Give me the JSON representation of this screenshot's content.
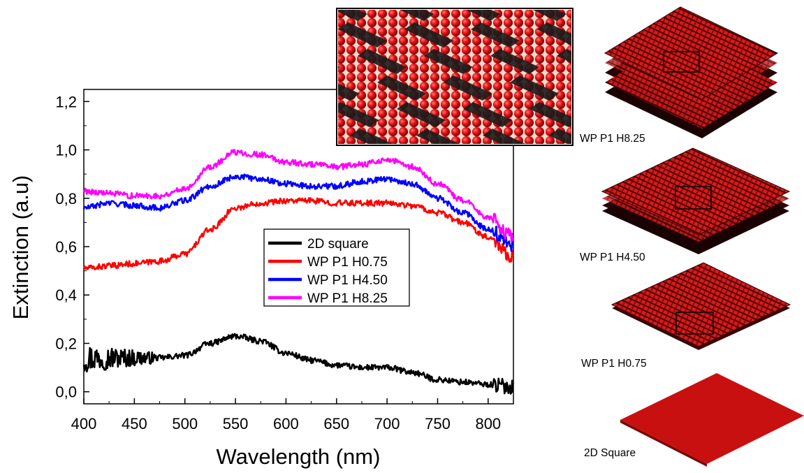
{
  "chart_data": {
    "type": "line",
    "xlabel": "Wavelength (nm)",
    "ylabel": "Extinction (a.u)",
    "xlim": [
      400,
      825
    ],
    "ylim": [
      -0.05,
      1.25
    ],
    "x_ticks": [
      400,
      450,
      500,
      550,
      600,
      650,
      700,
      750,
      800
    ],
    "x_tick_labels": [
      "400",
      "450",
      "500",
      "550",
      "600",
      "650",
      "700",
      "750",
      "800"
    ],
    "y_ticks": [
      0.0,
      0.2,
      0.4,
      0.6,
      0.8,
      1.0,
      1.2
    ],
    "y_tick_labels": [
      "0,0",
      "0,2",
      "0,4",
      "0,6",
      "0,8",
      "1,0",
      "1,2"
    ],
    "grid": false,
    "legend_position": "center",
    "x": [
      400,
      425,
      450,
      475,
      500,
      525,
      550,
      575,
      600,
      625,
      650,
      675,
      700,
      725,
      750,
      775,
      800,
      825
    ],
    "series": [
      {
        "name": "2D square",
        "color": "#000000",
        "values": [
          0.14,
          0.14,
          0.14,
          0.14,
          0.15,
          0.2,
          0.23,
          0.21,
          0.16,
          0.13,
          0.11,
          0.1,
          0.1,
          0.08,
          0.05,
          0.04,
          0.03,
          0.02
        ]
      },
      {
        "name": "WP P1 H0.75",
        "color": "#ff0000",
        "values": [
          0.51,
          0.52,
          0.53,
          0.54,
          0.57,
          0.67,
          0.76,
          0.78,
          0.79,
          0.79,
          0.78,
          0.78,
          0.78,
          0.77,
          0.74,
          0.7,
          0.64,
          0.56
        ]
      },
      {
        "name": "WP P1 H4.50",
        "color": "#0000ff",
        "values": [
          0.76,
          0.78,
          0.77,
          0.76,
          0.79,
          0.85,
          0.89,
          0.88,
          0.86,
          0.85,
          0.85,
          0.87,
          0.88,
          0.86,
          0.8,
          0.74,
          0.67,
          0.6
        ]
      },
      {
        "name": "WP P1 H8.25",
        "color": "#ff00ff",
        "values": [
          0.83,
          0.82,
          0.81,
          0.81,
          0.84,
          0.93,
          0.99,
          0.98,
          0.95,
          0.94,
          0.93,
          0.94,
          0.96,
          0.93,
          0.86,
          0.79,
          0.72,
          0.64
        ]
      }
    ]
  },
  "inset_labels": [
    "WP P1 H8.25",
    "WP P1 H4.50",
    "WP P1 H0.75",
    "2D Square"
  ],
  "colors": {
    "particle_red": "#e8141c",
    "dark_red": "#8a0a0a",
    "sheet_red": "#c81010"
  }
}
